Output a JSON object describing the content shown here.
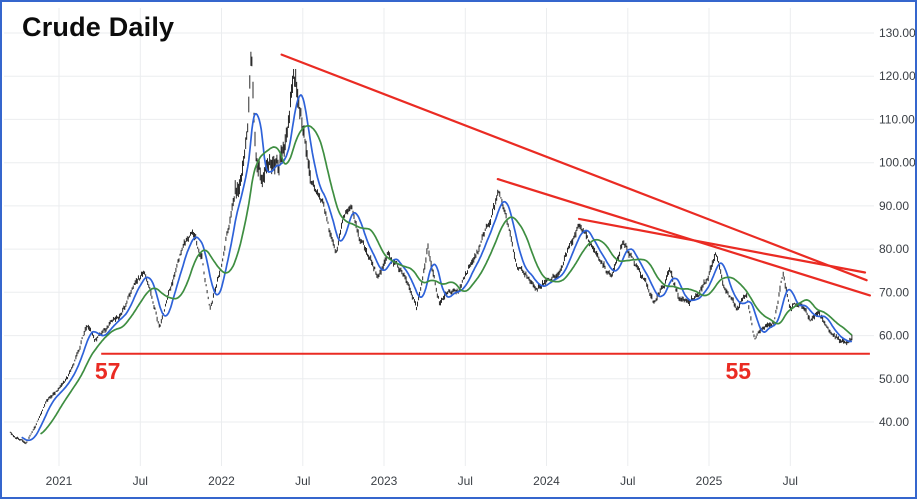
{
  "window": {
    "border_color": "#3566cd",
    "background": "#ffffff"
  },
  "chart_data": {
    "type": "candlestick",
    "title": "Crude Daily",
    "bar_color": "#141414",
    "grid_color": "#ebedef",
    "trend_color": "#ea2b23",
    "axis_text_color": "#3a3f45",
    "y_axis": {
      "ticks": [
        {
          "label": "130.00",
          "value": 130
        },
        {
          "label": "120.00",
          "value": 120
        },
        {
          "label": "110.00",
          "value": 110
        },
        {
          "label": "100.00",
          "value": 100
        },
        {
          "label": "90.00",
          "value": 90
        },
        {
          "label": "80.00",
          "value": 80
        },
        {
          "label": "70.00",
          "value": 70
        },
        {
          "label": "60.00",
          "value": 60
        },
        {
          "label": "50.00",
          "value": 50
        },
        {
          "label": "40.00",
          "value": 40
        }
      ],
      "range": [
        30,
        133
      ]
    },
    "x_axis": {
      "ticks": [
        {
          "label": "2021",
          "t": 2021.0
        },
        {
          "label": "Jul",
          "t": 2021.5
        },
        {
          "label": "2022",
          "t": 2022.0
        },
        {
          "label": "Jul",
          "t": 2022.5
        },
        {
          "label": "2023",
          "t": 2023.0
        },
        {
          "label": "Jul",
          "t": 2023.5
        },
        {
          "label": "2024",
          "t": 2024.0
        },
        {
          "label": "Jul",
          "t": 2024.5
        },
        {
          "label": "2025",
          "t": 2025.0
        },
        {
          "label": "Jul",
          "t": 2025.5
        }
      ]
    },
    "time_range": [
      2020.7,
      2025.885
    ],
    "series_anchors": [
      [
        2020.7,
        37.5
      ],
      [
        2020.76,
        36.0
      ],
      [
        2020.8,
        35.0
      ],
      [
        2020.85,
        38.5
      ],
      [
        2020.92,
        44.5
      ],
      [
        2021.0,
        48.0
      ],
      [
        2021.08,
        52.5
      ],
      [
        2021.17,
        63.5
      ],
      [
        2021.22,
        59.5
      ],
      [
        2021.3,
        61.5
      ],
      [
        2021.38,
        64.5
      ],
      [
        2021.46,
        71.0
      ],
      [
        2021.52,
        74.5
      ],
      [
        2021.56,
        71.5
      ],
      [
        2021.62,
        62.5
      ],
      [
        2021.67,
        70.0
      ],
      [
        2021.75,
        79.5
      ],
      [
        2021.82,
        84.0
      ],
      [
        2021.88,
        78.5
      ],
      [
        2021.93,
        66.5
      ],
      [
        2022.0,
        77.0
      ],
      [
        2022.07,
        90.0
      ],
      [
        2022.12,
        95.5
      ],
      [
        2022.16,
        109.0
      ],
      [
        2022.185,
        127.0
      ],
      [
        2022.21,
        103.0
      ],
      [
        2022.25,
        98.0
      ],
      [
        2022.3,
        102.0
      ],
      [
        2022.355,
        99.5
      ],
      [
        2022.4,
        106.0
      ],
      [
        2022.445,
        121.5
      ],
      [
        2022.5,
        106.5
      ],
      [
        2022.55,
        96.5
      ],
      [
        2022.6,
        92.0
      ],
      [
        2022.64,
        88.0
      ],
      [
        2022.71,
        78.5
      ],
      [
        2022.75,
        86.5
      ],
      [
        2022.8,
        88.5
      ],
      [
        2022.85,
        81.0
      ],
      [
        2022.9,
        78.0
      ],
      [
        2022.96,
        73.5
      ],
      [
        2023.02,
        79.0
      ],
      [
        2023.08,
        76.5
      ],
      [
        2023.15,
        73.0
      ],
      [
        2023.2,
        67.5
      ],
      [
        2023.27,
        80.5
      ],
      [
        2023.34,
        68.0
      ],
      [
        2023.4,
        70.0
      ],
      [
        2023.46,
        70.5
      ],
      [
        2023.52,
        75.5
      ],
      [
        2023.6,
        81.5
      ],
      [
        2023.66,
        88.0
      ],
      [
        2023.71,
        92.5
      ],
      [
        2023.76,
        87.0
      ],
      [
        2023.82,
        77.5
      ],
      [
        2023.88,
        74.5
      ],
      [
        2023.94,
        69.5
      ],
      [
        2024.0,
        72.5
      ],
      [
        2024.06,
        73.5
      ],
      [
        2024.12,
        78.5
      ],
      [
        2024.2,
        86.0
      ],
      [
        2024.26,
        82.5
      ],
      [
        2024.33,
        77.5
      ],
      [
        2024.4,
        73.5
      ],
      [
        2024.47,
        81.5
      ],
      [
        2024.53,
        78.0
      ],
      [
        2024.6,
        73.0
      ],
      [
        2024.66,
        67.5
      ],
      [
        2024.72,
        71.5
      ],
      [
        2024.76,
        75.5
      ],
      [
        2024.82,
        68.5
      ],
      [
        2024.88,
        68.0
      ],
      [
        2024.94,
        70.0
      ],
      [
        2025.0,
        73.5
      ],
      [
        2025.04,
        78.5
      ],
      [
        2025.1,
        70.5
      ],
      [
        2025.17,
        67.0
      ],
      [
        2025.23,
        69.5
      ],
      [
        2025.28,
        58.5
      ],
      [
        2025.33,
        62.0
      ],
      [
        2025.4,
        63.5
      ],
      [
        2025.455,
        74.0
      ],
      [
        2025.5,
        66.0
      ],
      [
        2025.56,
        67.5
      ],
      [
        2025.62,
        63.5
      ],
      [
        2025.68,
        64.5
      ],
      [
        2025.74,
        60.5
      ],
      [
        2025.8,
        59.0
      ],
      [
        2025.85,
        57.5
      ],
      [
        2025.885,
        59.5
      ]
    ],
    "moving_averages": [
      {
        "name": "ma-fast-blue",
        "period_samples": 12,
        "color": "#2e62d9"
      },
      {
        "name": "ma-slow-green",
        "period_samples": 30,
        "color": "#3e8e41"
      }
    ],
    "trendlines": [
      {
        "name": "trendline-major",
        "from": {
          "t": 2022.37,
          "price": 125.0
        },
        "to": {
          "t": 2025.97,
          "price": 72.8
        }
      },
      {
        "name": "trendline-mid",
        "from": {
          "t": 2023.7,
          "price": 96.2
        },
        "to": {
          "t": 2025.99,
          "price": 69.3
        }
      },
      {
        "name": "trendline-minor",
        "from": {
          "t": 2024.2,
          "price": 87.0
        },
        "to": {
          "t": 2025.96,
          "price": 74.6
        }
      }
    ],
    "support_line": {
      "price": 55.8,
      "t_start": 2021.26,
      "t_end": 2025.99,
      "labels": [
        {
          "text": "57",
          "t": 2021.3,
          "price": 50.0
        },
        {
          "text": "55",
          "t": 2025.18,
          "price": 50.0
        }
      ]
    }
  }
}
